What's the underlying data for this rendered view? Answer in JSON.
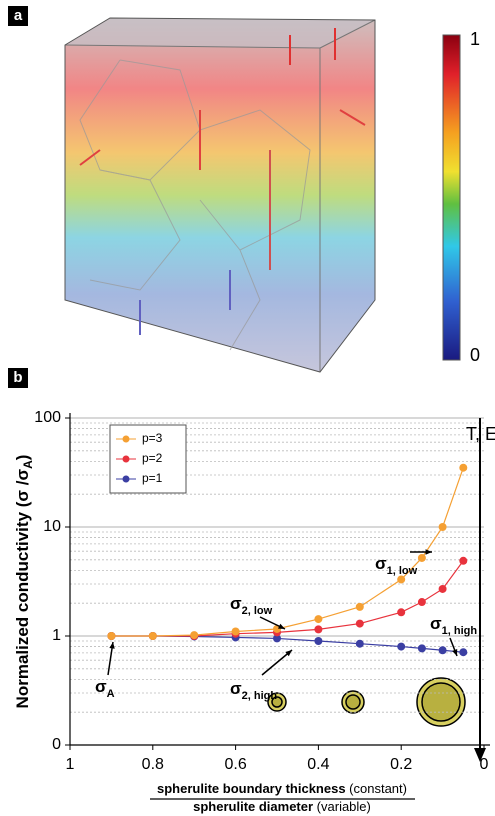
{
  "panels": {
    "a": {
      "label": "a",
      "colorbar_ticks": [
        "1",
        "0"
      ]
    },
    "b": {
      "label": "b"
    }
  },
  "chart_data": {
    "type": "line",
    "y_label": {
      "text": "Normalized conductivity (σ /σ",
      "sub": "A",
      "end": ")"
    },
    "x_label": {
      "top_bold": "spherulite boundary thickness",
      "top_rest": " (constant)",
      "bottom_bold": "spherulite diameter",
      "bottom_rest": " (variable)"
    },
    "x": [
      0.9,
      0.8,
      0.7,
      0.6,
      0.5,
      0.4,
      0.3,
      0.2,
      0.15,
      0.1,
      0.05
    ],
    "series": [
      {
        "name": "p=3",
        "color": "#f5a033",
        "values": [
          1,
          1,
          1.02,
          1.1,
          1.16,
          1.43,
          1.85,
          3.3,
          5.2,
          10,
          35
        ]
      },
      {
        "name": "p=2",
        "color": "#e8333d",
        "values": [
          1,
          1,
          1,
          1.05,
          1.08,
          1.15,
          1.3,
          1.65,
          2.05,
          2.7,
          4.9
        ]
      },
      {
        "name": "p=1",
        "color": "#3b3fa3",
        "values": [
          1,
          1,
          0.99,
          0.97,
          0.95,
          0.9,
          0.85,
          0.8,
          0.77,
          0.74,
          0.71
        ]
      }
    ],
    "xlim": [
      1,
      0
    ],
    "xticks": [
      1,
      0.8,
      0.6,
      0.4,
      0.2,
      0
    ],
    "ylim": [
      0.1,
      100
    ],
    "yscale": "log",
    "yticks": [
      {
        "value": 0.1,
        "label": "0"
      },
      1,
      10,
      100
    ],
    "yminorticks": [
      0.2,
      0.3,
      0.4,
      0.5,
      0.6,
      0.7,
      0.8,
      0.9,
      2,
      3,
      4,
      5,
      6,
      7,
      8,
      9,
      20,
      30,
      40,
      50,
      60,
      70,
      80,
      90
    ],
    "grid": true,
    "legend": "upper left",
    "annotations": [
      {
        "symbol": "σ",
        "sub": "A"
      },
      {
        "symbol": "σ",
        "sub": "2, low"
      },
      {
        "symbol": "σ",
        "sub": "2, high"
      },
      {
        "symbol": "σ",
        "sub": "1, low"
      },
      {
        "symbol": "σ",
        "sub": "1, high"
      },
      {
        "text": "T, E"
      }
    ]
  }
}
